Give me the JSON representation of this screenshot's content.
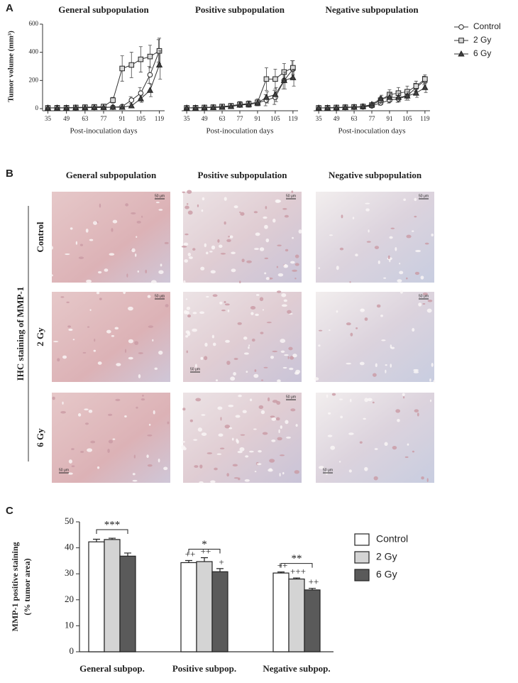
{
  "panel_labels": [
    "A",
    "B",
    "C"
  ],
  "ihc": {
    "columns": [
      "General subpopulation",
      "Positive subpopulation",
      "Negative subpopulation"
    ],
    "rows": [
      "Control",
      "2 Gy",
      "6 Gy"
    ],
    "ylabel": "IHC staining of MMP-1",
    "scale_bar": "50 μm"
  },
  "chart_data": [
    {
      "type": "line",
      "title": "General subpopulation",
      "xlabel": "Post-inoculation days",
      "ylabel": "Tumor volume (mm³)",
      "x": [
        35,
        42,
        49,
        56,
        63,
        70,
        77,
        84,
        91,
        98,
        105,
        112,
        119
      ],
      "xlim": [
        31,
        123
      ],
      "xticks": [
        35,
        49,
        63,
        77,
        91,
        105,
        119
      ],
      "ylim": [
        0,
        600
      ],
      "yticks": [
        0,
        200,
        400,
        600
      ],
      "legend": "right",
      "series": [
        {
          "name": "Control",
          "marker": "circle",
          "color": "#ffffff",
          "values": [
            5,
            5,
            5,
            6,
            8,
            8,
            10,
            10,
            15,
            60,
            110,
            240,
            410
          ],
          "errors": [
            3,
            3,
            3,
            3,
            4,
            4,
            5,
            5,
            8,
            25,
            40,
            60,
            80
          ]
        },
        {
          "name": "2 Gy",
          "marker": "square",
          "color": "#d9d9d9",
          "values": [
            5,
            6,
            6,
            8,
            10,
            12,
            15,
            60,
            285,
            310,
            350,
            370,
            410
          ],
          "errors": [
            3,
            3,
            3,
            4,
            4,
            5,
            6,
            20,
            90,
            90,
            90,
            80,
            90
          ]
        },
        {
          "name": "6 Gy",
          "marker": "triangle",
          "color": "#404040",
          "values": [
            5,
            5,
            5,
            6,
            6,
            8,
            8,
            10,
            10,
            20,
            70,
            130,
            310
          ],
          "errors": [
            3,
            3,
            3,
            3,
            3,
            4,
            4,
            5,
            5,
            10,
            25,
            45,
            100
          ]
        }
      ]
    },
    {
      "type": "line",
      "title": "Positive subpopulation",
      "xlabel": "Post-inoculation days",
      "x": [
        35,
        42,
        49,
        56,
        63,
        70,
        77,
        84,
        91,
        98,
        105,
        112,
        119
      ],
      "xlim": [
        31,
        123
      ],
      "xticks": [
        35,
        49,
        63,
        77,
        91,
        105,
        119
      ],
      "ylim": [
        0,
        600
      ],
      "series": [
        {
          "name": "Control",
          "marker": "circle",
          "color": "#ffffff",
          "values": [
            5,
            6,
            8,
            10,
            12,
            20,
            25,
            30,
            40,
            60,
            80,
            200,
            280
          ],
          "errors": [
            3,
            3,
            4,
            5,
            6,
            10,
            15,
            20,
            20,
            40,
            50,
            60,
            60
          ]
        },
        {
          "name": "2 Gy",
          "marker": "square",
          "color": "#d9d9d9",
          "values": [
            5,
            6,
            8,
            10,
            15,
            20,
            30,
            35,
            45,
            210,
            210,
            260,
            290
          ],
          "errors": [
            3,
            3,
            4,
            5,
            8,
            10,
            20,
            20,
            25,
            80,
            70,
            60,
            50
          ]
        },
        {
          "name": "6 Gy",
          "marker": "triangle",
          "color": "#404040",
          "values": [
            5,
            5,
            6,
            8,
            10,
            15,
            25,
            30,
            40,
            80,
            100,
            200,
            220
          ],
          "errors": [
            3,
            3,
            3,
            4,
            5,
            8,
            15,
            20,
            20,
            40,
            50,
            60,
            60
          ]
        }
      ]
    },
    {
      "type": "line",
      "title": "Negative subpopulation",
      "xlabel": "Post-inoculation days",
      "x": [
        35,
        42,
        49,
        56,
        63,
        70,
        77,
        84,
        91,
        98,
        105,
        112,
        119
      ],
      "xlim": [
        31,
        123
      ],
      "xticks": [
        35,
        49,
        63,
        77,
        91,
        105,
        119
      ],
      "ylim": [
        0,
        600
      ],
      "series": [
        {
          "name": "Control",
          "marker": "circle",
          "color": "#ffffff",
          "values": [
            5,
            5,
            6,
            8,
            10,
            12,
            20,
            40,
            60,
            70,
            90,
            150,
            200
          ],
          "errors": [
            3,
            3,
            3,
            4,
            5,
            6,
            10,
            15,
            20,
            25,
            30,
            30,
            30
          ]
        },
        {
          "name": "2 Gy",
          "marker": "square",
          "color": "#d9d9d9",
          "values": [
            5,
            6,
            8,
            10,
            12,
            15,
            25,
            60,
            100,
            110,
            120,
            160,
            210
          ],
          "errors": [
            3,
            3,
            4,
            5,
            6,
            8,
            12,
            25,
            35,
            40,
            40,
            35,
            30
          ]
        },
        {
          "name": "6 Gy",
          "marker": "triangle",
          "color": "#404040",
          "values": [
            5,
            5,
            6,
            8,
            10,
            15,
            30,
            70,
            80,
            80,
            90,
            110,
            150
          ],
          "errors": [
            3,
            3,
            3,
            4,
            5,
            8,
            15,
            25,
            30,
            30,
            30,
            30,
            35
          ]
        }
      ]
    },
    {
      "type": "bar",
      "ylabel": [
        "MMP-1 positive staining",
        "(% tumor area)"
      ],
      "categories": [
        "General subpop.",
        "Positive subpop.",
        "Negative subpop."
      ],
      "ylim": [
        0,
        50
      ],
      "yticks": [
        0,
        10,
        20,
        30,
        40,
        50
      ],
      "legend": "right",
      "series": [
        {
          "name": "Control",
          "color": "#ffffff",
          "values": [
            42.3,
            34.3,
            30.3
          ],
          "errors": [
            1.0,
            0.8,
            0.4
          ]
        },
        {
          "name": "2 Gy",
          "color": "#d4d4d4",
          "values": [
            43.2,
            34.7,
            28.0
          ],
          "errors": [
            0.5,
            1.5,
            0.4
          ]
        },
        {
          "name": "6 Gy",
          "color": "#5a5a5a",
          "values": [
            36.8,
            30.8,
            23.8
          ],
          "errors": [
            1.2,
            1.2,
            0.6
          ]
        }
      ],
      "annotations": [
        {
          "series": 0,
          "category": 1,
          "text": "++"
        },
        {
          "series": 1,
          "category": 1,
          "text": "++"
        },
        {
          "series": 2,
          "category": 1,
          "text": "+"
        },
        {
          "series": 0,
          "category": 2,
          "text": "++"
        },
        {
          "series": 1,
          "category": 2,
          "text": "+++"
        },
        {
          "series": 2,
          "category": 2,
          "text": "++"
        }
      ],
      "brackets": [
        {
          "category": 0,
          "text": "***"
        },
        {
          "category": 1,
          "text": "*"
        },
        {
          "category": 2,
          "text": "**"
        }
      ]
    }
  ]
}
